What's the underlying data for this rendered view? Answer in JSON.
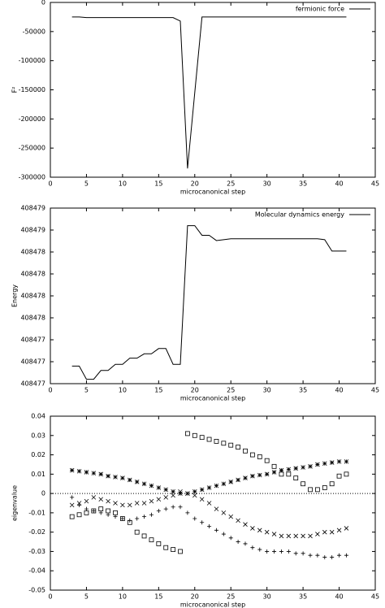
{
  "chart_data": [
    {
      "type": "line",
      "ylabel": "F²",
      "xlabel": "microcanonical step",
      "legend": "upper right",
      "xlim": [
        0,
        45
      ],
      "xticks": [
        0,
        5,
        10,
        15,
        20,
        25,
        30,
        35,
        40,
        45
      ],
      "ylim": [
        -300000,
        0
      ],
      "yticks": [
        -300000,
        -250000,
        -200000,
        -150000,
        -100000,
        -50000,
        0
      ],
      "x": [
        3,
        4,
        5,
        6,
        7,
        8,
        9,
        10,
        11,
        12,
        13,
        14,
        15,
        16,
        17,
        18,
        19,
        20,
        21,
        22,
        23,
        24,
        25,
        26,
        27,
        28,
        29,
        30,
        31,
        32,
        33,
        34,
        35,
        36,
        37,
        38,
        39,
        40,
        41
      ],
      "series": [
        {
          "name": "fermionic force",
          "color": "#000000",
          "values": [
            -25000,
            -25000,
            -26000,
            -26000,
            -26000,
            -26000,
            -26000,
            -26000,
            -26000,
            -26000,
            -26000,
            -26000,
            -26000,
            -26000,
            -26000,
            -32000,
            -285000,
            -155000,
            -25000,
            -25000,
            -25000,
            -25000,
            -25000,
            -25000,
            -25000,
            -25000,
            -25000,
            -25000,
            -25000,
            -25000,
            -25000,
            -25000,
            -25000,
            -25000,
            -25000,
            -25000,
            -25000,
            -25000,
            -25000
          ]
        }
      ]
    },
    {
      "type": "line",
      "ylabel": "Energy",
      "xlabel": "microcanonical step",
      "legend": "upper right",
      "xlim": [
        0,
        45
      ],
      "xticks": [
        0,
        5,
        10,
        15,
        20,
        25,
        30,
        35,
        40,
        45
      ],
      "ylim": [
        408476.6,
        408478.6
      ],
      "yticks": [
        {
          "value": 408476.6,
          "label": "408477"
        },
        {
          "value": 408476.85,
          "label": "408477"
        },
        {
          "value": 408477.1,
          "label": "408477"
        },
        {
          "value": 408477.35,
          "label": "408478"
        },
        {
          "value": 408477.6,
          "label": "408478"
        },
        {
          "value": 408477.85,
          "label": "408478"
        },
        {
          "value": 408478.1,
          "label": "408478"
        },
        {
          "value": 408478.35,
          "label": "408479"
        },
        {
          "value": 408478.6,
          "label": "408479"
        }
      ],
      "x": [
        3,
        4,
        5,
        6,
        7,
        8,
        9,
        10,
        11,
        12,
        13,
        14,
        15,
        16,
        17,
        18,
        19,
        20,
        21,
        22,
        23,
        24,
        25,
        26,
        27,
        28,
        29,
        30,
        31,
        32,
        33,
        34,
        35,
        36,
        37,
        38,
        39,
        40,
        41
      ],
      "series": [
        {
          "name": "Molecular dynamics energy",
          "color": "#000000",
          "values": [
            408476.8,
            408476.8,
            408476.65,
            408476.65,
            408476.75,
            408476.75,
            408476.82,
            408476.82,
            408476.89,
            408476.89,
            408476.94,
            408476.94,
            408477.0,
            408477.0,
            408476.82,
            408476.82,
            408478.4,
            408478.4,
            408478.29,
            408478.29,
            408478.23,
            408478.24,
            408478.25,
            408478.25,
            408478.25,
            408478.25,
            408478.25,
            408478.25,
            408478.25,
            408478.25,
            408478.25,
            408478.25,
            408478.25,
            408478.25,
            408478.25,
            408478.24,
            408478.11,
            408478.11,
            408478.11
          ]
        }
      ]
    },
    {
      "type": "scatter",
      "ylabel": "eigenvalue",
      "xlabel": "microcanonical step",
      "hline": 0,
      "xlim": [
        0,
        45
      ],
      "xticks": [
        0,
        5,
        10,
        15,
        20,
        25,
        30,
        35,
        40,
        45
      ],
      "ylim": [
        -0.05,
        0.04
      ],
      "yticks": [
        -0.05,
        -0.04,
        -0.03,
        -0.02,
        -0.01,
        0,
        0.01,
        0.02,
        0.03,
        0.04
      ],
      "x": [
        3,
        4,
        5,
        6,
        7,
        8,
        9,
        10,
        11,
        12,
        13,
        14,
        15,
        16,
        17,
        18,
        19,
        20,
        21,
        22,
        23,
        24,
        25,
        26,
        27,
        28,
        29,
        30,
        31,
        32,
        33,
        34,
        35,
        36,
        37,
        38,
        39,
        40,
        41
      ],
      "series": [
        {
          "marker": "asterisk",
          "color": "#000000",
          "values": [
            0.012,
            0.0115,
            0.011,
            0.0105,
            0.01,
            0.009,
            0.0085,
            0.008,
            0.007,
            0.006,
            0.005,
            0.004,
            0.003,
            0.002,
            0.001,
            0,
            0,
            0.001,
            0.002,
            0.003,
            0.004,
            0.005,
            0.006,
            0.007,
            0.008,
            0.009,
            0.0095,
            0.01,
            0.011,
            0.012,
            0.0125,
            0.013,
            0.0135,
            0.014,
            0.015,
            0.0155,
            0.016,
            0.0165,
            0.0165
          ]
        },
        {
          "marker": "square",
          "color": "#000000",
          "values": [
            -0.012,
            -0.011,
            -0.01,
            -0.009,
            -0.008,
            -0.009,
            -0.01,
            -0.013,
            -0.015,
            -0.02,
            -0.022,
            -0.024,
            -0.026,
            -0.028,
            -0.029,
            -0.03,
            0.031,
            0.03,
            0.029,
            0.028,
            0.027,
            0.026,
            0.025,
            0.024,
            0.022,
            0.02,
            0.019,
            0.017,
            0.014,
            0.01,
            0.01,
            0.008,
            0.005,
            0.002,
            0.002,
            0.003,
            0.005,
            0.009,
            0.01
          ]
        },
        {
          "marker": "cross",
          "color": "#000000",
          "values": [
            -0.006,
            -0.005,
            -0.004,
            -0.002,
            -0.003,
            -0.004,
            -0.005,
            -0.006,
            -0.006,
            -0.005,
            -0.005,
            -0.004,
            -0.003,
            -0.002,
            -0.001,
            0.001,
            0,
            -0.001,
            -0.003,
            -0.005,
            -0.008,
            -0.01,
            -0.012,
            -0.014,
            -0.016,
            -0.018,
            -0.019,
            -0.02,
            -0.021,
            -0.022,
            -0.022,
            -0.022,
            -0.022,
            -0.022,
            -0.021,
            -0.02,
            -0.02,
            -0.019,
            -0.018
          ]
        },
        {
          "marker": "plus",
          "color": "#000000",
          "values": [
            -0.002,
            -0.006,
            -0.008,
            -0.009,
            -0.01,
            -0.011,
            -0.012,
            -0.013,
            -0.014,
            -0.013,
            -0.012,
            -0.011,
            -0.009,
            -0.008,
            -0.007,
            -0.007,
            -0.01,
            -0.013,
            -0.015,
            -0.017,
            -0.019,
            -0.021,
            -0.023,
            -0.025,
            -0.026,
            -0.028,
            -0.029,
            -0.03,
            -0.03,
            -0.03,
            -0.03,
            -0.031,
            -0.031,
            -0.032,
            -0.032,
            -0.033,
            -0.033,
            -0.032,
            -0.032
          ]
        }
      ]
    }
  ]
}
